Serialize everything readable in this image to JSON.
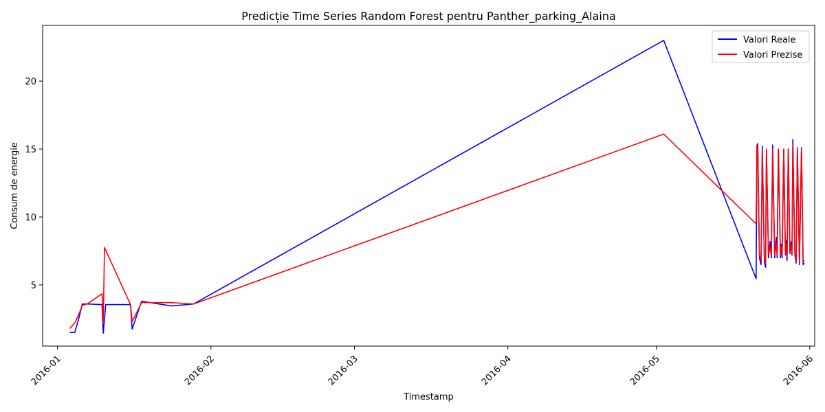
{
  "chart_data": {
    "type": "line",
    "title": "Predicție Time Series Random Forest pentru Panther_parking_Alaina",
    "xlabel": "Timestamp",
    "ylabel": "Consum de energie",
    "x_type": "date",
    "xlim": [
      "2015-12-29",
      "2016-06-02"
    ],
    "ylim": [
      0.5,
      24.1
    ],
    "x_ticks": [
      "2016-01",
      "2016-02",
      "2016-03",
      "2016-04",
      "2016-05",
      "2016-06"
    ],
    "y_ticks": [
      5,
      10,
      15,
      20
    ],
    "grid": false,
    "legend_position": "top-right",
    "series": [
      {
        "name": "Valori Reale",
        "color": "#0000ff",
        "points": [
          [
            "2016-01-03T12:00",
            1.5
          ],
          [
            "2016-01-04T12:00",
            1.5
          ],
          [
            "2016-01-05T12:00",
            2.8
          ],
          [
            "2016-01-06T00:00",
            3.6
          ],
          [
            "2016-01-07T00:00",
            3.6
          ],
          [
            "2016-01-10T00:00",
            3.55
          ],
          [
            "2016-01-10T06:00",
            1.45
          ],
          [
            "2016-01-10T18:00",
            3.55
          ],
          [
            "2016-01-15T18:00",
            3.55
          ],
          [
            "2016-01-16T02:00",
            1.75
          ],
          [
            "2016-01-18T00:00",
            3.8
          ],
          [
            "2016-01-24T00:00",
            3.45
          ],
          [
            "2016-01-28T12:00",
            3.6
          ],
          [
            "2016-05-02T12:00",
            23.0
          ],
          [
            "2016-05-21T04:00",
            5.45
          ],
          [
            "2016-05-21T08:00",
            15.2
          ],
          [
            "2016-05-21T12:00",
            15.4
          ],
          [
            "2016-05-21T20:00",
            7.0
          ],
          [
            "2016-05-22T04:00",
            6.5
          ],
          [
            "2016-05-22T10:00",
            15.2
          ],
          [
            "2016-05-22T20:00",
            6.7
          ],
          [
            "2016-05-23T02:00",
            6.3
          ],
          [
            "2016-05-23T06:00",
            15.0
          ],
          [
            "2016-05-23T16:00",
            7.0
          ],
          [
            "2016-05-24T00:00",
            8.2
          ],
          [
            "2016-05-24T06:00",
            7.0
          ],
          [
            "2016-05-24T12:00",
            15.3
          ],
          [
            "2016-05-24T22:00",
            7.0
          ],
          [
            "2016-05-25T06:00",
            8.5
          ],
          [
            "2016-05-25T10:00",
            7.0
          ],
          [
            "2016-05-25T16:00",
            15.0
          ],
          [
            "2016-05-26T02:00",
            7.0
          ],
          [
            "2016-05-26T06:00",
            8.0
          ],
          [
            "2016-05-26T10:00",
            7.0
          ],
          [
            "2016-05-26T18:00",
            15.0
          ],
          [
            "2016-05-27T02:00",
            7.2
          ],
          [
            "2016-05-27T06:00",
            8.3
          ],
          [
            "2016-05-27T10:00",
            6.8
          ],
          [
            "2016-05-27T16:00",
            15.0
          ],
          [
            "2016-05-28T00:00",
            7.3
          ],
          [
            "2016-05-28T06:00",
            8.2
          ],
          [
            "2016-05-28T10:00",
            7.2
          ],
          [
            "2016-05-28T14:00",
            15.7
          ],
          [
            "2016-05-29T00:00",
            7.2
          ],
          [
            "2016-05-29T06:00",
            6.6
          ],
          [
            "2016-05-29T12:00",
            15.1
          ],
          [
            "2016-05-29T22:00",
            6.5
          ],
          [
            "2016-05-30T08:00",
            15.1
          ],
          [
            "2016-05-30T16:00",
            6.5
          ],
          [
            "2016-05-30T22:00",
            6.6
          ]
        ]
      },
      {
        "name": "Valori Prezise",
        "color": "#ff0000",
        "points": [
          [
            "2016-01-03T12:00",
            1.8
          ],
          [
            "2016-01-04T12:00",
            2.2
          ],
          [
            "2016-01-05T12:00",
            3.0
          ],
          [
            "2016-01-06T00:00",
            3.5
          ],
          [
            "2016-01-07T00:00",
            3.6
          ],
          [
            "2016-01-10T00:00",
            4.35
          ],
          [
            "2016-01-10T06:00",
            2.2
          ],
          [
            "2016-01-10T12:00",
            7.75
          ],
          [
            "2016-01-15T18:00",
            3.55
          ],
          [
            "2016-01-16T02:00",
            2.3
          ],
          [
            "2016-01-18T00:00",
            3.7
          ],
          [
            "2016-01-24T00:00",
            3.7
          ],
          [
            "2016-01-28T12:00",
            3.6
          ],
          [
            "2016-05-02T12:00",
            16.1
          ],
          [
            "2016-05-21T04:00",
            9.5
          ],
          [
            "2016-05-21T08:00",
            15.3
          ],
          [
            "2016-05-21T12:00",
            15.0
          ],
          [
            "2016-05-21T20:00",
            7.2
          ],
          [
            "2016-05-22T04:00",
            6.8
          ],
          [
            "2016-05-22T10:00",
            15.0
          ],
          [
            "2016-05-22T20:00",
            6.9
          ],
          [
            "2016-05-23T02:00",
            6.6
          ],
          [
            "2016-05-23T06:00",
            15.0
          ],
          [
            "2016-05-23T16:00",
            7.2
          ],
          [
            "2016-05-24T00:00",
            7.8
          ],
          [
            "2016-05-24T06:00",
            7.2
          ],
          [
            "2016-05-24T12:00",
            15.0
          ],
          [
            "2016-05-24T22:00",
            7.2
          ],
          [
            "2016-05-25T06:00",
            8.0
          ],
          [
            "2016-05-25T10:00",
            7.2
          ],
          [
            "2016-05-25T16:00",
            15.0
          ],
          [
            "2016-05-26T02:00",
            7.2
          ],
          [
            "2016-05-26T06:00",
            7.8
          ],
          [
            "2016-05-26T10:00",
            7.2
          ],
          [
            "2016-05-26T18:00",
            15.0
          ],
          [
            "2016-05-27T02:00",
            7.3
          ],
          [
            "2016-05-27T06:00",
            8.0
          ],
          [
            "2016-05-27T10:00",
            7.1
          ],
          [
            "2016-05-27T16:00",
            15.0
          ],
          [
            "2016-05-28T00:00",
            7.4
          ],
          [
            "2016-05-28T06:00",
            7.9
          ],
          [
            "2016-05-28T10:00",
            7.3
          ],
          [
            "2016-05-28T14:00",
            15.3
          ],
          [
            "2016-05-29T00:00",
            7.3
          ],
          [
            "2016-05-29T06:00",
            6.8
          ],
          [
            "2016-05-29T12:00",
            15.0
          ],
          [
            "2016-05-29T22:00",
            6.7
          ],
          [
            "2016-05-30T08:00",
            15.0
          ],
          [
            "2016-05-30T16:00",
            6.7
          ],
          [
            "2016-05-30T22:00",
            6.8
          ]
        ]
      }
    ]
  }
}
